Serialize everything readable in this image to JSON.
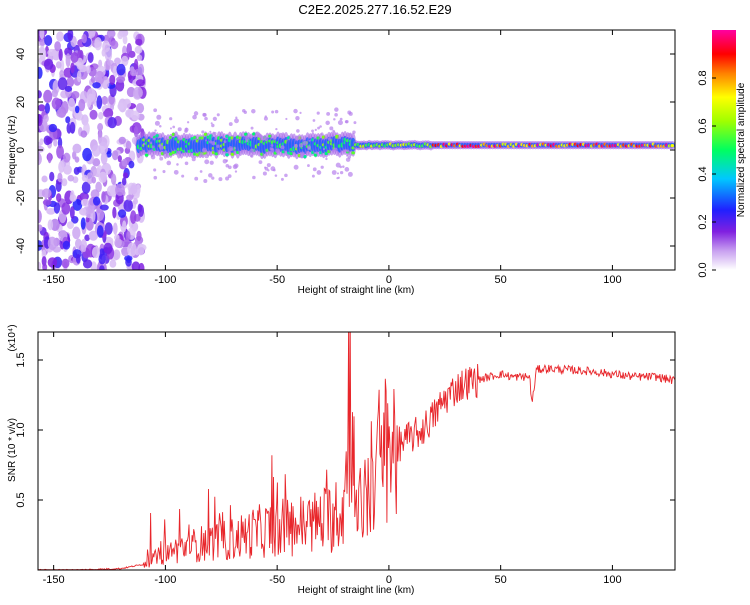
{
  "title": "C2E2.2025.277.16.52.E29",
  "top": {
    "xlabel": "Height of straight line (km)",
    "ylabel": "Frequency (Hz)",
    "colorbar_label": "Normalized spectral amplitude",
    "xticks": [
      "-150",
      "-100",
      "-50",
      "0",
      "50",
      "100"
    ],
    "yticks": [
      "40",
      "20",
      "0",
      "-20",
      "-40"
    ],
    "cbticks": [
      "0.0",
      "0.2",
      "0.4",
      "0.6",
      "0.8"
    ]
  },
  "bottom": {
    "xlabel": "Height of straight line (km)",
    "ylabel": "SNR (10 * v/v)",
    "exponent_label": "(x10⁴)",
    "xticks": [
      "-150",
      "-100",
      "-50",
      "0",
      "50",
      "100"
    ],
    "yticks": [
      "0.5",
      "1.0",
      "1.5"
    ]
  },
  "colors": {
    "snr_line": "#e8262b"
  },
  "chart_data": [
    {
      "type": "heatmap",
      "description_of_axes": "x = height (km), y = frequency (Hz), color = normalized spectral amplitude",
      "xlim": [
        -157,
        128
      ],
      "ylim": [
        -50,
        50
      ],
      "clim": [
        0,
        1
      ],
      "colormap": "rainbow (purple-blue-cyan-green-yellow-red-magenta)",
      "features": {
        "noise_region_x": [
          -157,
          -112
        ],
        "signal_band_center_hz": 2,
        "strong_band_start_km": 20
      }
    },
    {
      "type": "line",
      "series": [
        {
          "x": [
            -157,
            -140,
            -120,
            -110,
            -100,
            -90,
            -80,
            -70,
            -60,
            -50,
            -40,
            -30,
            -25,
            -20,
            -17,
            -15,
            -10,
            -5,
            0,
            5,
            10,
            15,
            20,
            25,
            30,
            35,
            40,
            45,
            50,
            55,
            60,
            63,
            64,
            66,
            70,
            80,
            90,
            100,
            110,
            120,
            128
          ],
          "y": [
            0.0,
            0.0,
            0.01,
            0.04,
            0.12,
            0.17,
            0.2,
            0.22,
            0.27,
            0.3,
            0.32,
            0.35,
            0.38,
            0.45,
            1.58,
            0.35,
            0.55,
            0.78,
            0.85,
            0.9,
            0.95,
            1.0,
            1.1,
            1.22,
            1.3,
            1.34,
            1.36,
            1.38,
            1.4,
            1.38,
            1.38,
            1.38,
            1.18,
            1.43,
            1.44,
            1.43,
            1.42,
            1.4,
            1.38,
            1.38,
            1.35
          ]
        }
      ],
      "xlim": [
        -157,
        128
      ],
      "ylim": [
        0,
        1.7
      ],
      "ylabel_units": "x10^4"
    }
  ]
}
